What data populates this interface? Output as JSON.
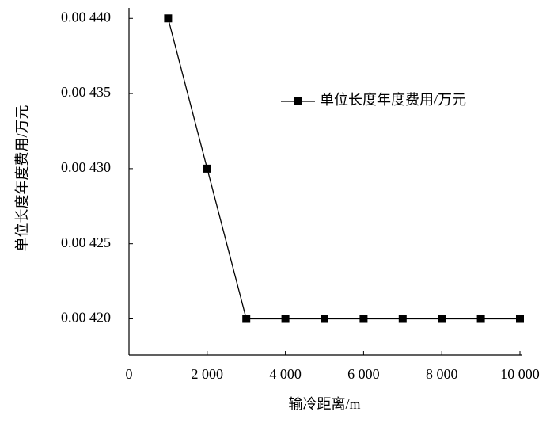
{
  "chart_data": {
    "type": "line",
    "x_label": "输冷距离/m",
    "y_label": "单位长度年度费用/万元",
    "x": [
      1000,
      2000,
      3000,
      4000,
      5000,
      6000,
      7000,
      8000,
      9000,
      10000
    ],
    "series": [
      {
        "name": "单位长度年度费用/万元",
        "color": "#000000",
        "values": [
          0.0044,
          0.0043,
          0.0042,
          0.0042,
          0.0042,
          0.0042,
          0.0042,
          0.0042,
          0.0042,
          0.0042
        ]
      }
    ],
    "xlim": [
      0,
      10000
    ],
    "xticks": [
      0,
      {
        "value": 2000,
        "label": "2 000"
      },
      {
        "value": 4000,
        "label": "4 000"
      },
      {
        "value": 6000,
        "label": "6 000"
      },
      {
        "value": 8000,
        "label": "8 000"
      },
      {
        "value": 10000,
        "label": "10 000"
      }
    ],
    "ylim": [
      0.004176,
      0.004407
    ],
    "yticks": [
      {
        "value": 0.0042,
        "label": "0.00 420"
      },
      {
        "value": 0.00425,
        "label": "0.00 425"
      },
      {
        "value": 0.0043,
        "label": "0.00 430"
      },
      {
        "value": 0.00435,
        "label": "0.00 435"
      },
      {
        "value": 0.0044,
        "label": "0.00 440"
      }
    ],
    "grid": false,
    "legend": "upper right"
  }
}
